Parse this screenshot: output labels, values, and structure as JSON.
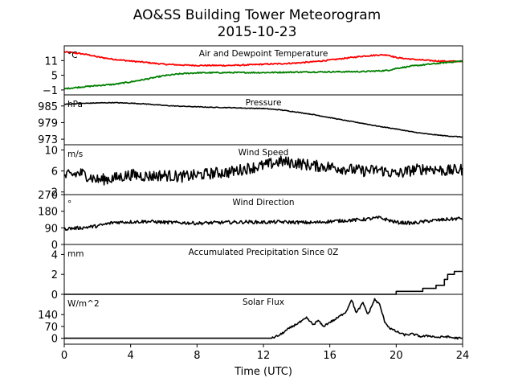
{
  "chart_data": {
    "type": "line",
    "title": "AO&SS Building Tower Meteorogram",
    "subtitle": "2015-10-23",
    "xlabel": "Time (UTC)",
    "xlim": [
      0,
      24
    ],
    "xticks": [
      0,
      4,
      8,
      12,
      16,
      20,
      24
    ],
    "panels": [
      {
        "title": "Air and Dewpoint Temperature",
        "unit": "°C",
        "ylim": [
          -3,
          17
        ],
        "yticks": [
          -1,
          5,
          11
        ],
        "ytick_labels": [
          "−1",
          "5",
          "11"
        ],
        "series": [
          {
            "color": "#ff0000",
            "x": [
              0,
              0.5,
              1,
              1.5,
              2,
              3,
              4,
              5,
              6,
              7,
              8,
              9,
              10,
              11,
              12,
              13,
              14,
              15,
              16,
              17,
              18,
              19,
              19.5,
              20,
              21,
              22,
              23,
              24
            ],
            "y": [
              14.5,
              14.2,
              13.8,
              13.3,
              12.5,
              11.5,
              10.8,
              10.2,
              9.5,
              9.2,
              9.0,
              9.0,
              9.0,
              9.2,
              9.5,
              9.7,
              10.0,
              10.5,
              11.2,
              12.0,
              12.8,
              13.3,
              13.3,
              12.2,
              11.5,
              11.0,
              10.7,
              10.7
            ]
          },
          {
            "color": "#008000",
            "x": [
              0,
              1,
              2,
              3,
              4,
              5,
              6,
              7,
              8,
              10,
              12,
              14,
              16,
              18,
              19,
              19.5,
              20,
              21,
              22,
              23,
              24
            ],
            "y": [
              -0.5,
              0.2,
              0.8,
              1.3,
              2.3,
              3.5,
              4.8,
              5.6,
              6.0,
              6.1,
              6.1,
              6.3,
              6.4,
              6.5,
              6.8,
              7.0,
              7.8,
              8.8,
              9.5,
              10.2,
              10.8
            ]
          }
        ]
      },
      {
        "title": "Pressure",
        "unit": "hPa",
        "ylim": [
          971,
          989
        ],
        "yticks": [
          973,
          979,
          985
        ],
        "ytick_labels": [
          "973",
          "979",
          "985"
        ],
        "series": [
          {
            "color": "#000000",
            "x": [
              0,
              1,
              2,
              3,
              4,
              5,
              6,
              7,
              8,
              9,
              10,
              11,
              12,
              13,
              14,
              15,
              16,
              17,
              18,
              19,
              20,
              21,
              22,
              23,
              24
            ],
            "y": [
              985.6,
              985.9,
              986.1,
              986.2,
              986.0,
              985.7,
              985.2,
              984.9,
              984.7,
              984.5,
              984.4,
              984.2,
              984.1,
              983.6,
              982.8,
              981.9,
              980.8,
              979.7,
              978.7,
              977.6,
              976.7,
              975.6,
              974.8,
              974.2,
              973.8
            ]
          }
        ]
      },
      {
        "title": "Wind Speed",
        "unit": "m/s",
        "ylim": [
          1.5,
          11
        ],
        "yticks": [
          2,
          6,
          10
        ],
        "ytick_labels": [
          "2",
          "6",
          "10"
        ],
        "series": [
          {
            "color": "#000000",
            "x": [
              0,
              1,
              2,
              3,
              4,
              5,
              6,
              7,
              8,
              9,
              10,
              11,
              12,
              13,
              14,
              15,
              16,
              17,
              18,
              19,
              20,
              21,
              22,
              23,
              24
            ],
            "y": [
              5.0,
              5.6,
              4.3,
              4.6,
              5.3,
              5.0,
              5.2,
              4.9,
              5.2,
              5.6,
              5.8,
              6.5,
              7.0,
              7.8,
              7.5,
              7.0,
              6.8,
              6.4,
              6.0,
              6.2,
              5.4,
              6.2,
              6.5,
              6.0,
              6.3
            ]
          }
        ]
      },
      {
        "title": "Wind Direction",
        "unit": "°",
        "ylim": [
          0,
          270
        ],
        "yticks": [
          0,
          90,
          180,
          270
        ],
        "ytick_labels": [
          "0",
          "90",
          "180",
          "270"
        ],
        "series": [
          {
            "color": "#000000",
            "x": [
              0,
              1,
              2,
              3,
              4,
              5,
              6,
              7,
              8,
              9,
              10,
              11,
              12,
              13,
              14,
              15,
              16,
              17,
              18,
              19,
              20,
              21,
              22,
              23,
              24
            ],
            "y": [
              85,
              90,
              100,
              120,
              122,
              125,
              120,
              118,
              115,
              118,
              120,
              122,
              120,
              122,
              120,
              118,
              125,
              130,
              135,
              145,
              120,
              115,
              128,
              135,
              142
            ]
          }
        ]
      },
      {
        "title": "Accumulated Precipitation Since 0Z",
        "unit": "mm",
        "ylim": [
          0,
          5
        ],
        "yticks": [
          0,
          2,
          4
        ],
        "ytick_labels": [
          "0",
          "2",
          "4"
        ],
        "series": [
          {
            "color": "#000000",
            "x": [
              0,
              20,
              20,
              21.6,
              21.6,
              22.4,
              22.4,
              22.9,
              22.9,
              23.1,
              23.1,
              23.5,
              23.5,
              24
            ],
            "y": [
              0,
              0,
              0.3,
              0.3,
              0.6,
              0.6,
              0.9,
              0.9,
              1.5,
              1.5,
              2.0,
              2.0,
              2.3,
              2.3
            ]
          }
        ]
      },
      {
        "title": "Solar Flux",
        "unit": "W/m^2",
        "ylim": [
          -35,
          260
        ],
        "yticks": [
          0,
          70,
          140
        ],
        "ytick_labels": [
          "0",
          "70",
          "140"
        ],
        "series": [
          {
            "color": "#000000",
            "x": [
              0,
              12.5,
              13,
              13.5,
              14,
              14.3,
              14.6,
              15,
              15.3,
              15.6,
              16,
              16.3,
              16.6,
              17,
              17.3,
              17.6,
              18,
              18.3,
              18.7,
              19,
              19.3,
              19.6,
              20,
              20.5,
              21,
              21.5,
              22,
              22.5,
              23,
              23.5,
              24
            ],
            "y": [
              0,
              0,
              20,
              55,
              85,
              100,
              120,
              80,
              105,
              70,
              95,
              110,
              130,
              160,
              230,
              150,
              210,
              140,
              230,
              200,
              100,
              60,
              40,
              20,
              25,
              10,
              15,
              5,
              10,
              2,
              0
            ]
          }
        ]
      }
    ]
  }
}
